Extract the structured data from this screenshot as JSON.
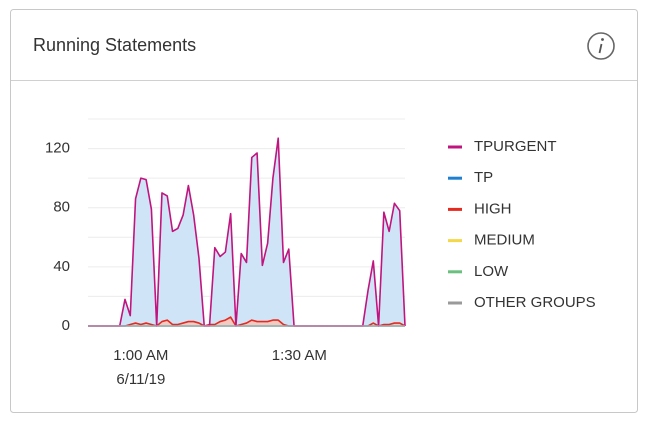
{
  "chart_data": {
    "type": "area",
    "title": "Running Statements",
    "categories": [
      null,
      null,
      null,
      null,
      null,
      null,
      null,
      null,
      null,
      null,
      "1:00 AM",
      null,
      null,
      null,
      null,
      null,
      null,
      null,
      null,
      null,
      null,
      null,
      null,
      null,
      null,
      null,
      null,
      null,
      null,
      null,
      null,
      null,
      null,
      null,
      null,
      null,
      null,
      null,
      null,
      null,
      "1:30 AM",
      null,
      null,
      null,
      null,
      null,
      null,
      null,
      null,
      null,
      null,
      null,
      null,
      null,
      null,
      null,
      null,
      null,
      null,
      null,
      null
    ],
    "date_label": "6/11/19",
    "ylim": [
      0,
      140
    ],
    "yticks": [
      0,
      40,
      80,
      120
    ],
    "minor_yticks": [
      20,
      60,
      100,
      140
    ],
    "grid": true,
    "series": [
      {
        "name": "TPURGENT",
        "color": "#c0157f",
        "fill": "#cfe5f7",
        "values": [
          0,
          0,
          0,
          0,
          0,
          0,
          0,
          18,
          7,
          86,
          100,
          99,
          79,
          0,
          90,
          88,
          64,
          66,
          75,
          95,
          75,
          46,
          0,
          0,
          53,
          47,
          50,
          76,
          0,
          49,
          43,
          114,
          117,
          41,
          56,
          100,
          127,
          43,
          52,
          0,
          0,
          0,
          0,
          0,
          0,
          0,
          0,
          0,
          0,
          0,
          0,
          0,
          0,
          24,
          44,
          0,
          77,
          64,
          83,
          78,
          0
        ]
      },
      {
        "name": "TP",
        "color": "#1f7fd0",
        "values": [
          0,
          0,
          0,
          0,
          0,
          0,
          0,
          0,
          0,
          0,
          0,
          0,
          0,
          0,
          0,
          0,
          0,
          0,
          0,
          0,
          0,
          0,
          0,
          0,
          0,
          0,
          0,
          0,
          0,
          0,
          0,
          0,
          0,
          0,
          0,
          0,
          0,
          0,
          0,
          0,
          0,
          0,
          0,
          0,
          0,
          0,
          0,
          0,
          0,
          0,
          0,
          0,
          0,
          0,
          0,
          0,
          0,
          0,
          0,
          0,
          0
        ]
      },
      {
        "name": "HIGH",
        "color": "#e52b20",
        "fill": "#f5c8c0",
        "values": [
          0,
          0,
          0,
          0,
          0,
          0,
          0,
          0,
          1,
          2,
          1,
          2,
          1,
          0,
          3,
          4,
          1,
          1,
          2,
          3,
          3,
          2,
          0,
          1,
          1,
          3,
          4,
          6,
          0,
          1,
          2,
          4,
          3,
          3,
          3,
          4,
          4,
          1,
          0,
          0,
          0,
          0,
          0,
          0,
          0,
          0,
          0,
          0,
          0,
          0,
          0,
          0,
          0,
          0,
          2,
          0,
          1,
          1,
          2,
          2,
          0
        ]
      },
      {
        "name": "MEDIUM",
        "color": "#f5d84a",
        "values": [
          0,
          0,
          0,
          0,
          0,
          0,
          0,
          0,
          0,
          0,
          0,
          0,
          0,
          0,
          0,
          0,
          0,
          0,
          0,
          0,
          0,
          0,
          0,
          0,
          0,
          0,
          0,
          0,
          0,
          0,
          0,
          0,
          0,
          0,
          0,
          0,
          0,
          0,
          0,
          0,
          0,
          0,
          0,
          0,
          0,
          0,
          0,
          0,
          0,
          0,
          0,
          0,
          0,
          0,
          0,
          0,
          0,
          0,
          0,
          0,
          0
        ]
      },
      {
        "name": "LOW",
        "color": "#6cc07f",
        "values": [
          0,
          0,
          0,
          0,
          0,
          0,
          0,
          0,
          0,
          0,
          0,
          0,
          0,
          0,
          0,
          0,
          0,
          0,
          0,
          0,
          0,
          0,
          0,
          0,
          0,
          0,
          0,
          0,
          0,
          0,
          0,
          0,
          0,
          0,
          0,
          0,
          0,
          0,
          0,
          0,
          0,
          0,
          0,
          0,
          0,
          0,
          0,
          0,
          0,
          0,
          0,
          0,
          0,
          0,
          0,
          0,
          0,
          0,
          0,
          0,
          0
        ]
      },
      {
        "name": "OTHER GROUPS",
        "color": "#9a9a9a",
        "values": [
          0,
          0,
          0,
          0,
          0,
          0,
          0,
          0,
          0,
          0,
          0,
          0,
          0,
          0,
          0,
          0,
          0,
          0,
          0,
          0,
          0,
          0,
          0,
          0,
          0,
          0,
          0,
          0,
          0,
          0,
          0,
          0,
          0,
          0,
          0,
          0,
          0,
          0,
          0,
          0,
          0,
          0,
          0,
          0,
          0,
          0,
          0,
          0,
          0,
          0,
          0,
          0,
          0,
          0,
          0,
          0,
          0,
          0,
          0,
          0,
          0
        ]
      }
    ]
  }
}
